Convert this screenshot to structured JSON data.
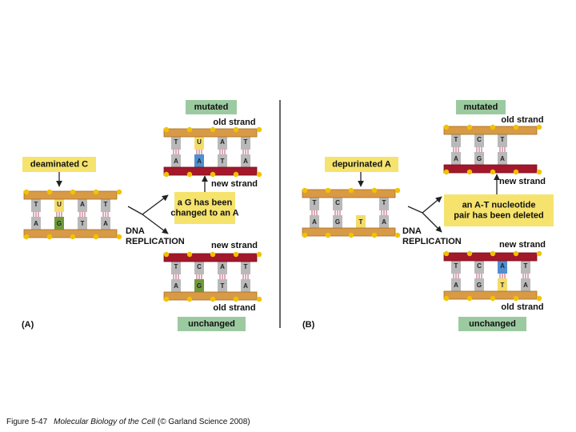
{
  "panel_a": {
    "label": "(A)",
    "lesion": "deaminated C",
    "process": [
      "DNA",
      "REPLICATION"
    ],
    "note": [
      "a G has been",
      "changed to an A"
    ],
    "original": {
      "pairs": [
        [
          "T",
          "A"
        ],
        [
          "U",
          "G"
        ],
        [
          "A",
          "T"
        ],
        [
          "T",
          "A"
        ]
      ]
    },
    "mutated": {
      "tag": "mutated",
      "top_strand": "old strand",
      "bottom_strand": "new strand",
      "pairs": [
        [
          "T",
          "A"
        ],
        [
          "U",
          "A"
        ],
        [
          "A",
          "T"
        ],
        [
          "T",
          "A"
        ]
      ]
    },
    "unchanged": {
      "tag": "unchanged",
      "top_strand": "new strand",
      "bottom_strand": "old strand",
      "pairs": [
        [
          "T",
          "A"
        ],
        [
          "C",
          "G"
        ],
        [
          "A",
          "T"
        ],
        [
          "T",
          "A"
        ]
      ]
    }
  },
  "panel_b": {
    "label": "(B)",
    "lesion": "depurinated A",
    "process": [
      "DNA",
      "REPLICATION"
    ],
    "note": [
      "an A-T nucleotide",
      "pair has been deleted"
    ],
    "original": {
      "pairs": [
        [
          "T",
          "A"
        ],
        [
          "C",
          "G"
        ],
        [
          null,
          "T"
        ],
        [
          "T",
          "A"
        ]
      ]
    },
    "mutated": {
      "tag": "mutated",
      "top_strand": "old strand",
      "bottom_strand": "new strand",
      "pairs": [
        [
          "T",
          "A"
        ],
        [
          "C",
          "G"
        ],
        [
          "T",
          "A"
        ]
      ]
    },
    "unchanged": {
      "tag": "unchanged",
      "top_strand": "new strand",
      "bottom_strand": "old strand",
      "pairs": [
        [
          "T",
          "A"
        ],
        [
          "C",
          "G"
        ],
        [
          "A",
          "T"
        ],
        [
          "T",
          "A"
        ]
      ]
    }
  },
  "caption": {
    "figure_number": "Figure 5-47",
    "book": "Molecular Biology of the Cell",
    "credit": "(© Garland Science 2008)"
  }
}
